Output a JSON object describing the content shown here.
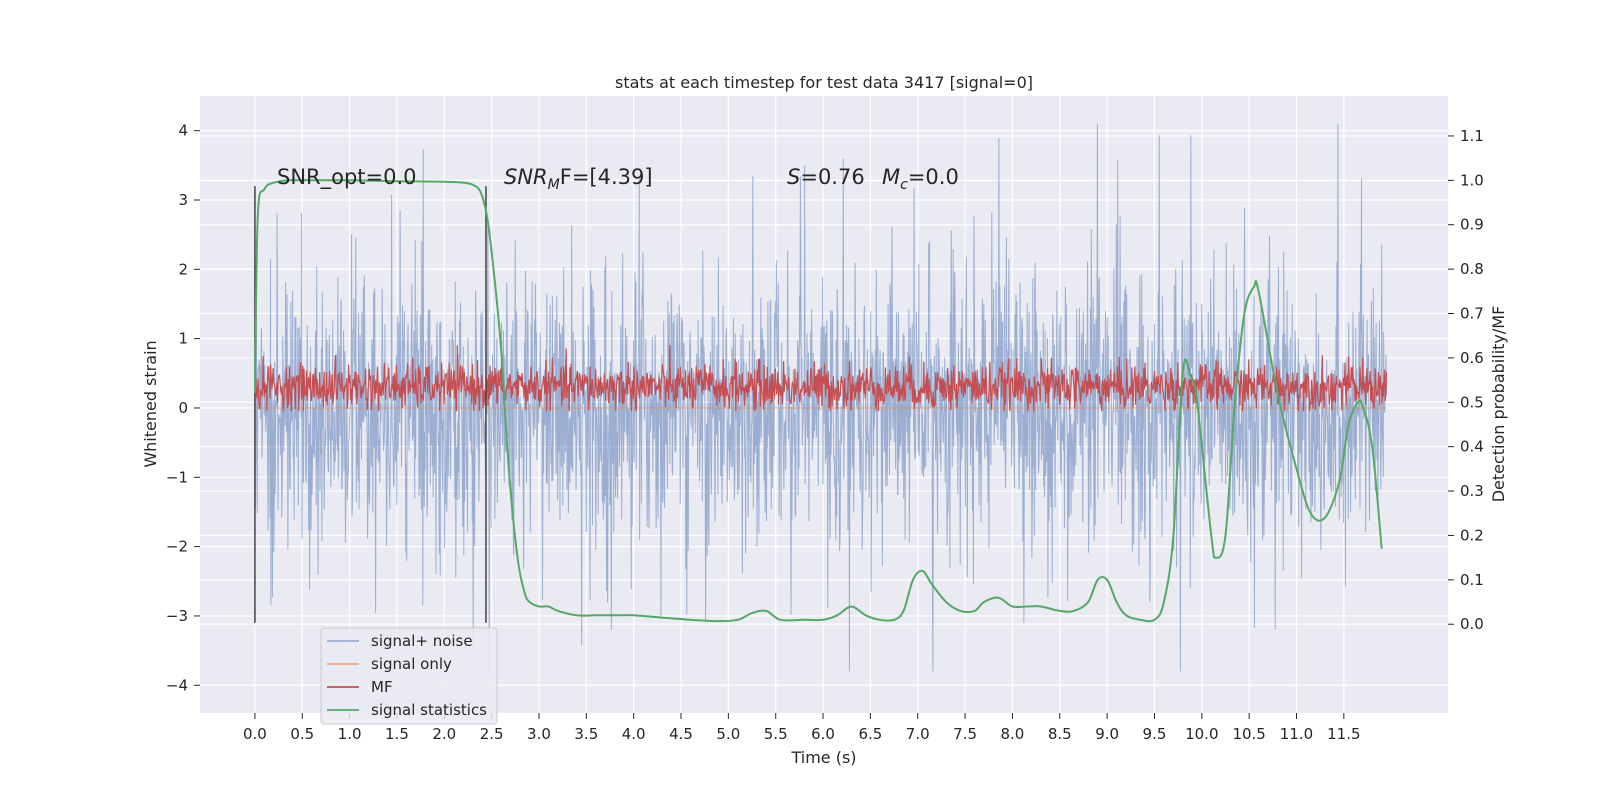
{
  "chart_data": {
    "type": "line",
    "title": "stats at each timestep for test data 3417 [signal=0]",
    "xlabel": "Time (s)",
    "ylabel_left": "Whitened strain",
    "ylabel_right": "Detection probability/MF",
    "xlim": [
      -0.58,
      12.6
    ],
    "ylim_left": [
      -4.4,
      4.5
    ],
    "ylim_right": [
      -0.2,
      1.19
    ],
    "x_ticks": [
      "0.0",
      "0.5",
      "1.0",
      "1.5",
      "2.0",
      "2.5",
      "3.0",
      "3.5",
      "4.0",
      "4.5",
      "5.0",
      "5.5",
      "6.0",
      "6.5",
      "7.0",
      "7.5",
      "8.0",
      "8.5",
      "9.0",
      "9.5",
      "10.0",
      "10.5",
      "11.0",
      "11.5"
    ],
    "y_ticks_left": [
      "4",
      "3",
      "2",
      "1",
      "0",
      "−1",
      "−2",
      "−3",
      "−4"
    ],
    "y_ticks_right": [
      "1.1",
      "1.0",
      "0.9",
      "0.8",
      "0.7",
      "0.6",
      "0.5",
      "0.4",
      "0.3",
      "0.2",
      "0.1",
      "0.0"
    ],
    "grid": true,
    "legend_position": "lower-left",
    "annotations": {
      "snr_opt": "SNR_opt=0.0",
      "snr_mf_prefix": "SNR",
      "snr_mf_sub": "M",
      "snr_mf_suffix": "F=[4.39]",
      "s_letter": "S",
      "s_value": "=0.76",
      "mc_letter": "M",
      "mc_sub": "c",
      "mc_value": "=0.0"
    },
    "window_markers": {
      "x": [
        0.0,
        2.44
      ],
      "y_range": [
        -3.1,
        3.2
      ]
    },
    "series": [
      {
        "name": "signal+ noise",
        "color": "#4c72b0",
        "axis": "left",
        "x_range": [
          0.0,
          11.95
        ],
        "typical_range": [
          -1.8,
          1.8
        ],
        "peak_range": [
          -3.8,
          4.1
        ]
      },
      {
        "name": "signal only",
        "color": "#dd8452",
        "axis": "left",
        "x": [
          0.0,
          11.95
        ],
        "y": [
          0.0,
          0.0
        ]
      },
      {
        "name": "MF",
        "color": "#c44e52",
        "axis": "right",
        "x_range": [
          0.0,
          11.95
        ],
        "typical_range": [
          0.5,
          0.57
        ],
        "peak_range": [
          0.48,
          0.65
        ]
      },
      {
        "name": "signal statistics",
        "color": "#55a868",
        "axis": "right",
        "x": [
          0.0,
          0.03,
          0.1,
          0.2,
          0.35,
          0.5,
          1.0,
          1.5,
          2.0,
          2.2,
          2.3,
          2.38,
          2.45,
          2.52,
          2.6,
          2.65,
          2.7,
          2.78,
          2.85,
          2.9,
          3.0,
          3.1,
          3.2,
          3.4,
          3.6,
          3.8,
          4.0,
          4.3,
          4.6,
          4.9,
          5.1,
          5.25,
          5.4,
          5.55,
          5.8,
          6.0,
          6.15,
          6.3,
          6.45,
          6.6,
          6.75,
          6.85,
          6.95,
          7.05,
          7.15,
          7.3,
          7.45,
          7.6,
          7.7,
          7.85,
          8.0,
          8.15,
          8.3,
          8.5,
          8.65,
          8.8,
          8.9,
          9.0,
          9.1,
          9.2,
          9.35,
          9.5,
          9.6,
          9.7,
          9.8,
          9.88,
          9.95,
          10.1,
          10.15,
          10.25,
          10.35,
          10.45,
          10.55,
          10.6,
          10.8,
          11.0,
          11.15,
          11.3,
          11.45,
          11.55,
          11.65,
          11.7,
          11.8,
          11.9
        ],
        "y": [
          0.52,
          0.92,
          0.98,
          0.995,
          1.0,
          1.0,
          1.0,
          0.998,
          0.997,
          0.995,
          0.99,
          0.975,
          0.92,
          0.8,
          0.62,
          0.45,
          0.3,
          0.14,
          0.07,
          0.05,
          0.04,
          0.04,
          0.03,
          0.02,
          0.02,
          0.02,
          0.02,
          0.015,
          0.01,
          0.007,
          0.01,
          0.025,
          0.03,
          0.01,
          0.01,
          0.01,
          0.02,
          0.04,
          0.02,
          0.01,
          0.01,
          0.03,
          0.1,
          0.12,
          0.09,
          0.05,
          0.03,
          0.03,
          0.05,
          0.06,
          0.04,
          0.04,
          0.04,
          0.03,
          0.03,
          0.05,
          0.1,
          0.1,
          0.05,
          0.02,
          0.01,
          0.01,
          0.05,
          0.2,
          0.57,
          0.56,
          0.5,
          0.2,
          0.15,
          0.2,
          0.5,
          0.7,
          0.76,
          0.75,
          0.52,
          0.35,
          0.25,
          0.24,
          0.32,
          0.45,
          0.5,
          0.49,
          0.4,
          0.17
        ]
      }
    ]
  }
}
